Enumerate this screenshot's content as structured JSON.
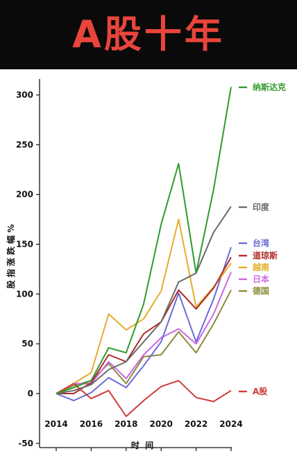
{
  "banner": {
    "title": "A股十年"
  },
  "chart_data": {
    "type": "line",
    "title": "",
    "xlabel": "时  间",
    "ylabel": "股 指 涨 跌 幅 %",
    "xlim": [
      2013,
      2025
    ],
    "ylim": [
      -50,
      310
    ],
    "xticks": [
      2014,
      2016,
      2018,
      2020,
      2022,
      2024
    ],
    "yticks": [
      -50,
      0,
      50,
      100,
      150,
      200,
      250,
      300
    ],
    "grid": false,
    "legend": "right, at line ends",
    "x": [
      2014,
      2015,
      2016,
      2017,
      2018,
      2019,
      2020,
      2021,
      2022,
      2023,
      2024
    ],
    "series": [
      {
        "name": "纳斯达克",
        "color": "#2f9a2f",
        "values": [
          0,
          6,
          13,
          46,
          41,
          90,
          170,
          231,
          121,
          205,
          308
        ]
      },
      {
        "name": "印度",
        "color": "#6a6a6a",
        "values": [
          0,
          3,
          9,
          24,
          32,
          52,
          72,
          112,
          121,
          162,
          188
        ]
      },
      {
        "name": "台湾",
        "color": "#6a6ad8",
        "values": [
          0,
          -7,
          1,
          16,
          6,
          28,
          52,
          101,
          52,
          95,
          147
        ]
      },
      {
        "name": "道琼斯",
        "color": "#b02a2a",
        "values": [
          0,
          0,
          11,
          39,
          32,
          60,
          72,
          104,
          85,
          106,
          137
        ]
      },
      {
        "name": "越南",
        "color": "#e4ad28",
        "values": [
          0,
          10,
          21,
          80,
          64,
          75,
          103,
          175,
          87,
          107,
          131
        ]
      },
      {
        "name": "日本",
        "color": "#cc66e6",
        "values": [
          0,
          10,
          10,
          32,
          15,
          39,
          56,
          65,
          50,
          80,
          122
        ]
      },
      {
        "name": "德国",
        "color": "#8a8a3a",
        "values": [
          0,
          8,
          13,
          30,
          10,
          37,
          39,
          62,
          41,
          70,
          104
        ]
      },
      {
        "name": "A股",
        "color": "#cf3a3a",
        "values": [
          0,
          10,
          -5,
          3,
          -23,
          -7,
          7,
          13,
          -4,
          -8,
          3
        ]
      }
    ]
  }
}
